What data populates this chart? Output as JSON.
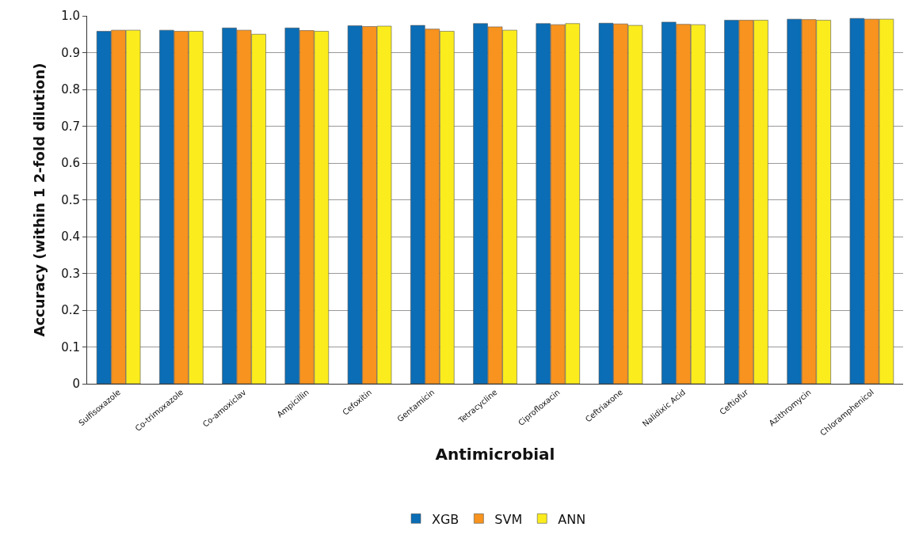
{
  "chart_data": {
    "type": "bar",
    "xlabel": "Antimicrobial",
    "ylabel": "Accuracy (within 1 2-fold dilution)",
    "categories": [
      "Sulfisoxazole",
      "Co-trimoxazole",
      "Co-amoxiclav",
      "Ampicillin",
      "Cefoxitin",
      "Gentamicin",
      "Tetracycline",
      "Ciprofloxacin",
      "Ceftriaxone",
      "Nalidixic Acid",
      "Ceftiofur",
      "Azithromycin",
      "Chloramphenicol"
    ],
    "series": [
      {
        "name": "XGB",
        "color": "#0a6db5",
        "values": [
          0.958,
          0.961,
          0.967,
          0.967,
          0.973,
          0.974,
          0.979,
          0.979,
          0.98,
          0.983,
          0.988,
          0.991,
          0.993
        ]
      },
      {
        "name": "SVM",
        "color": "#f7931e",
        "values": [
          0.961,
          0.958,
          0.961,
          0.96,
          0.971,
          0.964,
          0.97,
          0.976,
          0.978,
          0.977,
          0.988,
          0.99,
          0.991
        ]
      },
      {
        "name": "ANN",
        "color": "#fbec1d",
        "values": [
          0.961,
          0.958,
          0.95,
          0.958,
          0.972,
          0.958,
          0.961,
          0.979,
          0.974,
          0.976,
          0.988,
          0.988,
          0.991
        ]
      }
    ],
    "ylim": [
      0,
      1.0
    ],
    "yticks": [
      0,
      0.1,
      0.2,
      0.3,
      0.4,
      0.5,
      0.6,
      0.7,
      0.8,
      0.9,
      {
        "value": 1.0,
        "label": "1.0"
      }
    ],
    "grid": "y",
    "legend": "bottom"
  }
}
